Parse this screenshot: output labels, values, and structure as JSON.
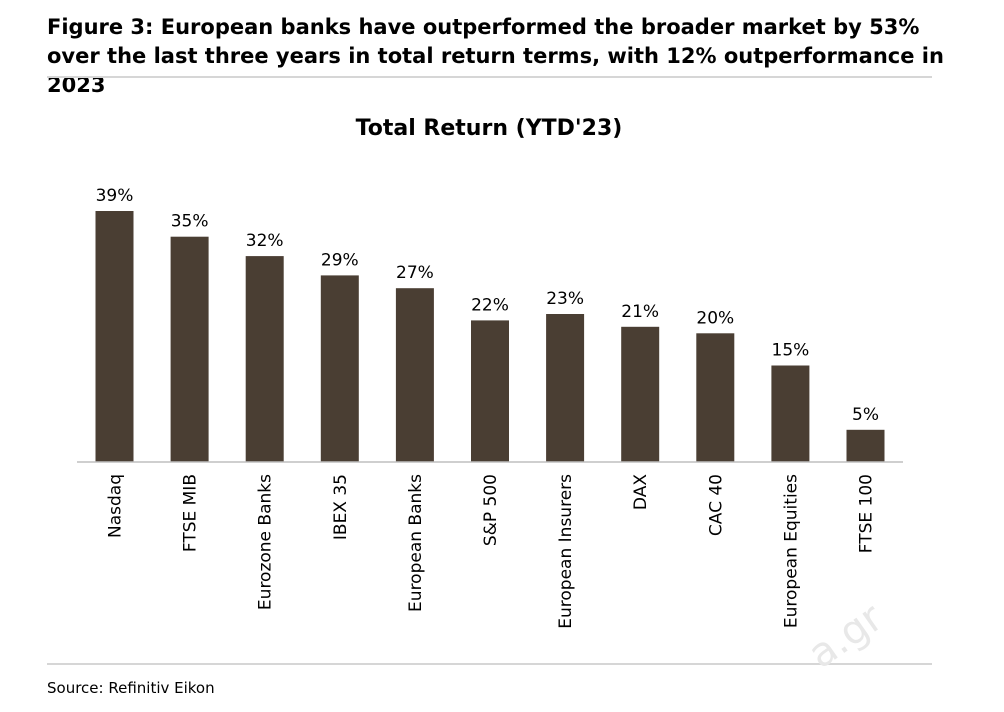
{
  "figure": {
    "title": "Figure 3: European banks have outperformed the broader market by 53% over the last three years in total return terms, with 12% outperformance in 2023",
    "source": "Source: Refinitiv Eikon",
    "watermark": "a.gr"
  },
  "colors": {
    "bar": "#4a3e33",
    "axis": "#bfbfbf",
    "rule": "#d6d6d6"
  },
  "chart_data": {
    "type": "bar",
    "title": "Total Return (YTD'23)",
    "categories": [
      "Nasdaq",
      "FTSE MIB",
      "Eurozone Banks",
      "IBEX 35",
      "European Banks",
      "S&P 500",
      "European Insurers",
      "DAX",
      "CAC 40",
      "European Equities",
      "FTSE 100"
    ],
    "values": [
      39,
      35,
      32,
      29,
      27,
      22,
      23,
      21,
      20,
      15,
      5
    ],
    "data_labels": [
      "39%",
      "35%",
      "32%",
      "29%",
      "27%",
      "22%",
      "23%",
      "21%",
      "20%",
      "15%",
      "5%"
    ],
    "xlabel": "",
    "ylabel": "",
    "ylim": [
      0,
      39
    ],
    "grid": false,
    "legend": "none",
    "y_axis_visible": false
  }
}
